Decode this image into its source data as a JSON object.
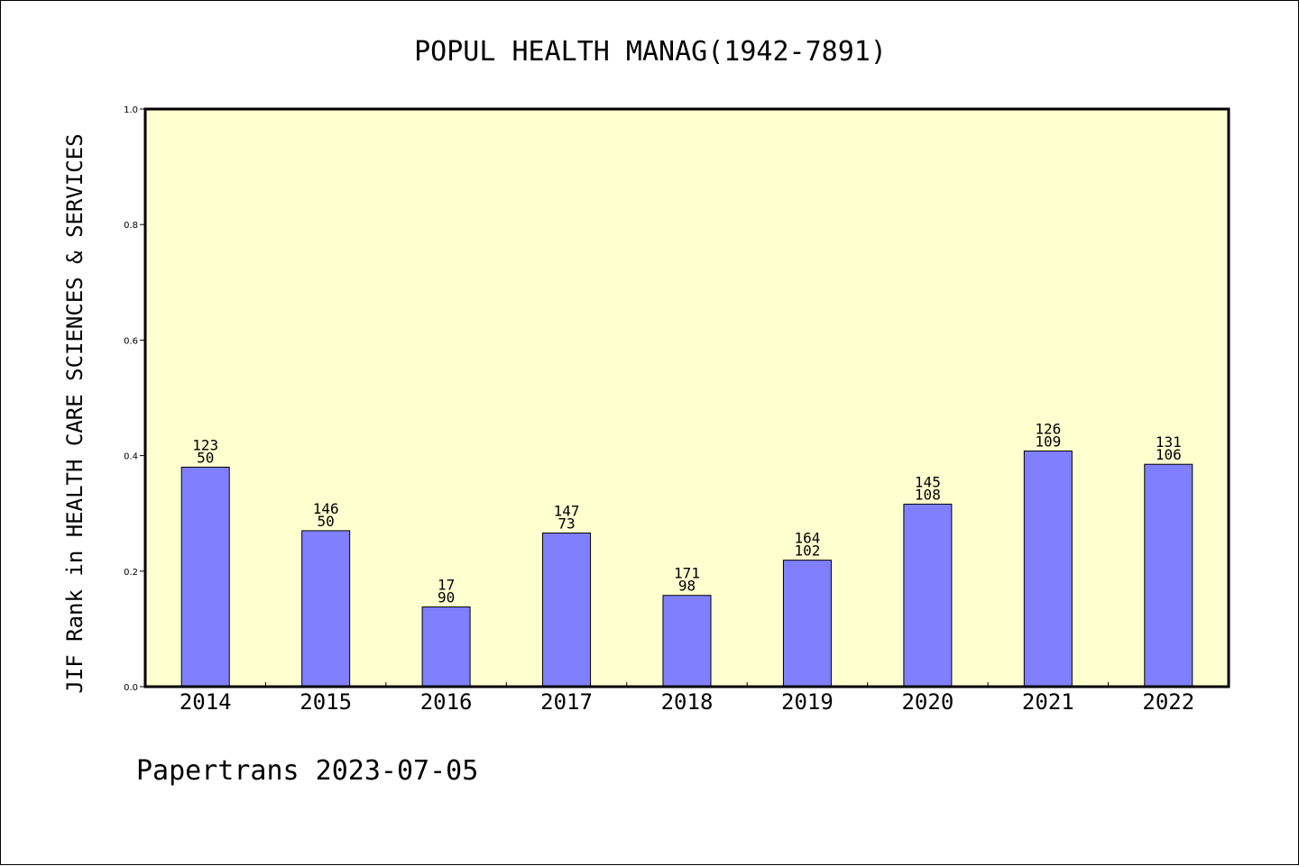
{
  "chart_data": {
    "type": "bar",
    "title": "POPUL HEALTH MANAG(1942-7891)",
    "ylabel": "JIF Rank in HEALTH CARE SCIENCES & SERVICES",
    "xlabel": "",
    "ylim": [
      0,
      1.0
    ],
    "yticks": [
      "0.0",
      "0.2",
      "0.4",
      "0.6",
      "0.8",
      "1.0"
    ],
    "categories": [
      "2014",
      "2015",
      "2016",
      "2017",
      "2018",
      "2019",
      "2020",
      "2021",
      "2022"
    ],
    "values": [
      0.38,
      0.27,
      0.138,
      0.266,
      0.158,
      0.219,
      0.316,
      0.408,
      0.385
    ],
    "labels_top": [
      "123",
      "146",
      "17",
      "147",
      "171",
      "164",
      "145",
      "126",
      "131"
    ],
    "labels_bottom": [
      "50",
      "50",
      "90",
      "73",
      "98",
      "102",
      "108",
      "109",
      "106"
    ],
    "grid": false,
    "colors": {
      "plot_background": "#ffffd0",
      "bar_fill": "#8080ff",
      "bar_stroke": "#000000"
    }
  },
  "footer": {
    "text": "Papertrans 2023-07-05"
  }
}
